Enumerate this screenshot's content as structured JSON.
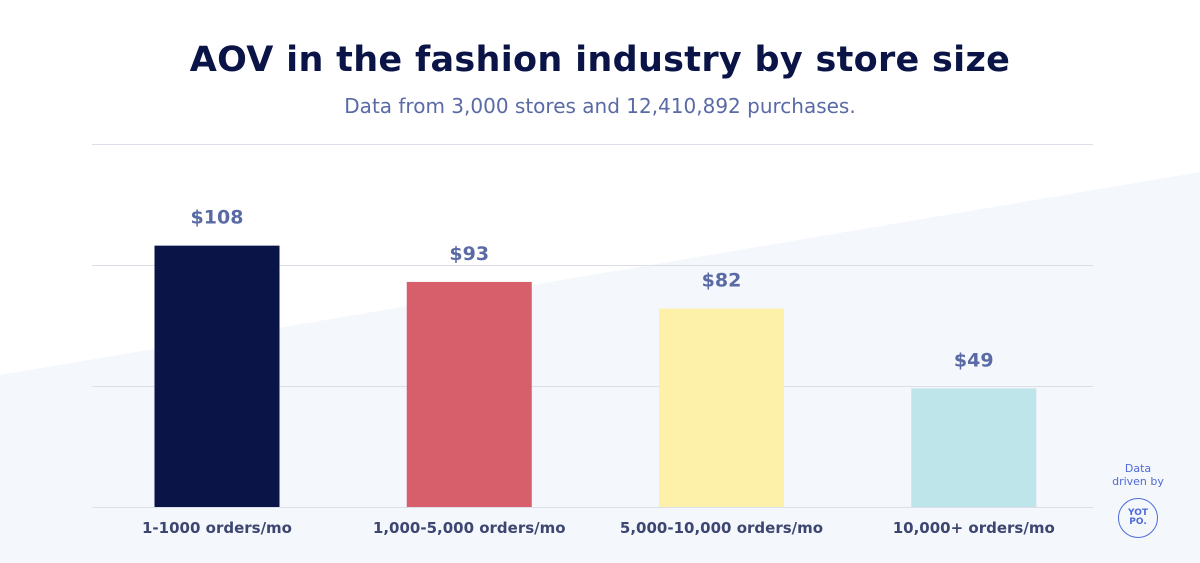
{
  "header": {
    "title": "AOV in the fashion industry by store size",
    "subtitle": "Data from 3,000 stores and 12,410,892 purchases."
  },
  "brand": {
    "line1": "Data",
    "line2": "driven by",
    "logo_top": "YOT",
    "logo_bottom": "PO."
  },
  "colors": {
    "title": "#0a1446",
    "value_labels": "#5a6aa5",
    "gridline": "#dcdfe8",
    "background_shape": "#f4f7fc",
    "brand": "#4f6ad8"
  },
  "chart_data": {
    "type": "bar",
    "title": "AOV in the fashion industry by store size",
    "subtitle": "Data from 3,000 stores and 12,410,892 purchases.",
    "categories": [
      "1-1000 orders/mo",
      "1,000-5,000 orders/mo",
      "5,000-10,000 orders/mo",
      "10,000+ orders/mo"
    ],
    "values": [
      108,
      93,
      82,
      49
    ],
    "value_labels": [
      "$108",
      "$93",
      "$82",
      "$49"
    ],
    "bar_colors": [
      "#0a1446",
      "#d75f6c",
      "#fdf0a8",
      "#bde5ea"
    ],
    "ylim": [
      0,
      150
    ],
    "gridlines": [
      0,
      50,
      100,
      150
    ],
    "grid": true,
    "axis_ticks_visible": false,
    "legend": "none",
    "xlabel": "",
    "ylabel": ""
  }
}
